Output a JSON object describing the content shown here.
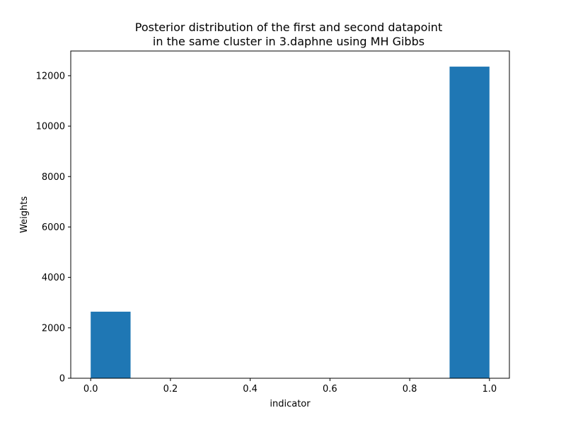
{
  "chart_data": {
    "type": "bar",
    "title_lines": [
      "Posterior distribution of the first and second datapoint",
      "in the same cluster in 3.daphne using MH Gibbs"
    ],
    "xlabel": "indicator",
    "ylabel": "Weights",
    "xlim": [
      -0.05,
      1.05
    ],
    "ylim": [
      0,
      12980
    ],
    "x_ticks": [
      0.0,
      0.2,
      0.4,
      0.6,
      0.8,
      1.0
    ],
    "x_tick_labels": [
      "0.0",
      "0.2",
      "0.4",
      "0.6",
      "0.8",
      "1.0"
    ],
    "y_ticks": [
      0,
      2000,
      4000,
      6000,
      8000,
      10000,
      12000
    ],
    "y_tick_labels": [
      "0",
      "2000",
      "4000",
      "6000",
      "8000",
      "10000",
      "12000"
    ],
    "bins": [
      {
        "start": 0.0,
        "end": 0.1,
        "value": 2640
      },
      {
        "start": 0.9,
        "end": 1.0,
        "value": 12360
      }
    ],
    "bar_color": "#1f77b4",
    "grid": false,
    "legend": "none"
  }
}
